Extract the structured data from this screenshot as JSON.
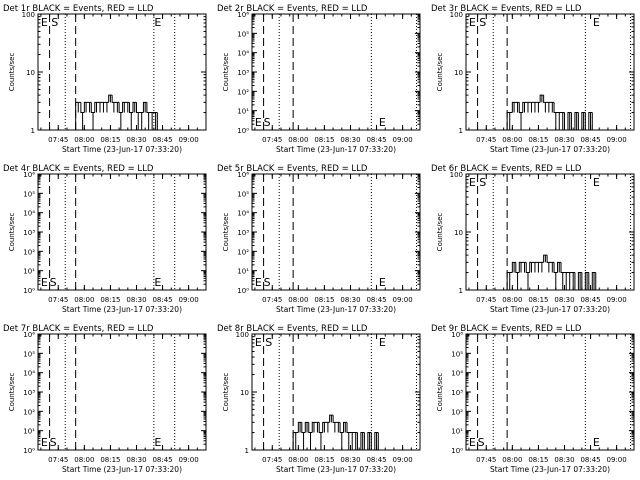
{
  "chart_data": [
    {
      "type": "line",
      "title": "Det 1r BLACK = Events, RED = LLD",
      "xlabel": "Start Time (23-Jun-17 07:33:20)",
      "ylabel": "Counts/sec",
      "yscale": "log",
      "ylim": [
        1,
        100
      ],
      "yticks": [
        "1",
        "10",
        "100"
      ],
      "xlim": [
        "07:33:20",
        "09:10:00"
      ],
      "xticks": [
        "07:45",
        "08:00",
        "08:15",
        "08:30",
        "08:45",
        "09:00"
      ],
      "markers": {
        "E": "07:37",
        "S": "07:43",
        "E2": "08:40"
      },
      "dashed_lines": [
        "07:40",
        "07:55"
      ],
      "dotted_lines": [
        "07:49",
        "08:40",
        "08:52"
      ],
      "series": [
        {
          "x": [
            "07:55",
            "07:58",
            "08:00",
            "08:02",
            "08:04",
            "08:06",
            "08:08",
            "08:10",
            "08:12",
            "08:14",
            "08:16",
            "08:18",
            "08:20",
            "08:22",
            "08:24",
            "08:26",
            "08:28",
            "08:30",
            "08:32",
            "08:34",
            "08:36",
            "08:38",
            "08:40"
          ],
          "values": [
            3,
            2,
            3,
            3,
            2,
            3,
            3,
            3,
            3,
            4,
            3,
            3,
            2,
            3,
            3,
            2,
            3,
            2,
            2,
            3,
            2,
            2,
            2
          ]
        }
      ]
    },
    {
      "type": "line",
      "title": "Det 2r BLACK = Events, RED = LLD",
      "xlabel": "Start Time (23-Jun-17 07:33:20)",
      "ylabel": "Counts/sec",
      "yscale": "log",
      "ylim": [
        1,
        1000000
      ],
      "yticks": [
        "10⁰",
        "10¹",
        "10²",
        "10³",
        "10⁴",
        "10⁵",
        "10⁶"
      ],
      "xlim": [
        "07:33:20",
        "09:10:00"
      ],
      "xticks": [
        "07:45",
        "08:00",
        "08:15",
        "08:30",
        "08:45",
        "09:00"
      ],
      "markers": {
        "E": "07:37",
        "S": "07:42",
        "E2": "08:46"
      },
      "dashed_lines": [
        "07:40",
        "07:57"
      ],
      "dotted_lines": [
        "07:49",
        "08:42",
        "09:08"
      ],
      "series": []
    },
    {
      "type": "line",
      "title": "Det 3r BLACK = Events, RED = LLD",
      "xlabel": "Start Time (23-Jun-17 07:33:20)",
      "ylabel": "Counts/sec",
      "yscale": "log",
      "ylim": [
        1,
        100
      ],
      "yticks": [
        "1",
        "10",
        "100"
      ],
      "xlim": [
        "07:33:20",
        "09:10:00"
      ],
      "xticks": [
        "07:45",
        "08:00",
        "08:15",
        "08:30",
        "08:45",
        "09:00"
      ],
      "markers": {
        "E": "07:37",
        "S": "07:43",
        "E2": "08:46"
      },
      "dashed_lines": [
        "07:40",
        "07:57"
      ],
      "dotted_lines": [
        "07:49",
        "08:42",
        "09:08"
      ],
      "series": [
        {
          "x": [
            "07:57",
            "08:00",
            "08:02",
            "08:04",
            "08:06",
            "08:08",
            "08:10",
            "08:12",
            "08:14",
            "08:16",
            "08:18",
            "08:20",
            "08:22",
            "08:24",
            "08:26",
            "08:28",
            "08:30",
            "08:32",
            "08:34",
            "08:36",
            "08:38",
            "08:40",
            "08:42",
            "08:44",
            "08:46"
          ],
          "values": [
            2,
            3,
            3,
            2,
            3,
            3,
            3,
            3,
            3,
            4,
            3,
            3,
            3,
            2,
            2,
            2,
            1,
            2,
            1,
            2,
            1,
            2,
            1,
            2,
            1
          ]
        }
      ]
    },
    {
      "type": "line",
      "title": "Det 4r BLACK = Events, RED = LLD",
      "xlabel": "Start Time (23-Jun-17 07:33:20)",
      "ylabel": "Counts/sec",
      "yscale": "log",
      "ylim": [
        1,
        1000000
      ],
      "yticks": [
        "10⁰",
        "10¹",
        "10²",
        "10³",
        "10⁴",
        "10⁵",
        "10⁶"
      ],
      "xlim": [
        "07:33:20",
        "09:10:00"
      ],
      "xticks": [
        "07:45",
        "08:00",
        "08:15",
        "08:30",
        "08:45",
        "09:00"
      ],
      "markers": {
        "E": "07:37",
        "S": "07:42",
        "E2": "08:40"
      },
      "dashed_lines": [
        "07:40",
        "07:55"
      ],
      "dotted_lines": [
        "07:49",
        "08:40",
        "08:52"
      ],
      "series": []
    },
    {
      "type": "line",
      "title": "Det 5r BLACK = Events, RED = LLD",
      "xlabel": "Start Time (23-Jun-17 07:33:20)",
      "ylabel": "Counts/sec",
      "yscale": "log",
      "ylim": [
        1,
        1000000
      ],
      "yticks": [
        "10⁰",
        "10¹",
        "10²",
        "10³",
        "10⁴",
        "10⁵",
        "10⁶"
      ],
      "xlim": [
        "07:33:20",
        "09:10:00"
      ],
      "xticks": [
        "07:45",
        "08:00",
        "08:15",
        "08:30",
        "08:45",
        "09:00"
      ],
      "markers": {
        "E": "07:37",
        "S": "07:42",
        "E2": "08:46"
      },
      "dashed_lines": [
        "07:40",
        "07:57"
      ],
      "dotted_lines": [
        "07:49",
        "08:42",
        "09:08"
      ],
      "series": []
    },
    {
      "type": "line",
      "title": "Det 6r BLACK = Events, RED = LLD",
      "xlabel": "Start Time (23-Jun-17 07:33:20)",
      "ylabel": "Counts/sec",
      "yscale": "log",
      "ylim": [
        1,
        100
      ],
      "yticks": [
        "1",
        "10",
        "100"
      ],
      "xlim": [
        "07:33:20",
        "09:10:00"
      ],
      "xticks": [
        "07:45",
        "08:00",
        "08:15",
        "08:30",
        "08:45",
        "09:00"
      ],
      "markers": {
        "E": "07:37",
        "S": "07:43",
        "E2": "08:46"
      },
      "dashed_lines": [
        "07:40",
        "07:57"
      ],
      "dotted_lines": [
        "07:49",
        "08:42",
        "09:08"
      ],
      "series": [
        {
          "x": [
            "07:57",
            "08:00",
            "08:02",
            "08:04",
            "08:06",
            "08:08",
            "08:10",
            "08:12",
            "08:14",
            "08:16",
            "08:18",
            "08:20",
            "08:22",
            "08:24",
            "08:26",
            "08:28",
            "08:30",
            "08:32",
            "08:34",
            "08:36",
            "08:38",
            "08:40",
            "08:42",
            "08:44",
            "08:46"
          ],
          "values": [
            2,
            3,
            2,
            3,
            3,
            2,
            3,
            3,
            3,
            3,
            4,
            3,
            3,
            2,
            3,
            2,
            2,
            2,
            2,
            1,
            2,
            1,
            2,
            1,
            2
          ]
        }
      ]
    },
    {
      "type": "line",
      "title": "Det 7r BLACK = Events, RED = LLD",
      "xlabel": "Start Time (23-Jun-17 07:33:20)",
      "ylabel": "Counts/sec",
      "yscale": "log",
      "ylim": [
        1,
        1000000
      ],
      "yticks": [
        "10⁰",
        "10¹",
        "10²",
        "10³",
        "10⁴",
        "10⁵",
        "10⁶"
      ],
      "xlim": [
        "07:33:20",
        "09:10:00"
      ],
      "xticks": [
        "07:45",
        "08:00",
        "08:15",
        "08:30",
        "08:45",
        "09:00"
      ],
      "markers": {
        "E": "07:37",
        "S": "07:42",
        "E2": "08:40"
      },
      "dashed_lines": [
        "07:40",
        "07:55"
      ],
      "dotted_lines": [
        "07:49",
        "08:40",
        "08:52"
      ],
      "series": []
    },
    {
      "type": "line",
      "title": "Det 8r BLACK = Events, RED = LLD",
      "xlabel": "Start Time (23-Jun-17 07:33:20)",
      "ylabel": "Counts/sec",
      "yscale": "log",
      "ylim": [
        1,
        100
      ],
      "yticks": [
        "1",
        "10",
        "100"
      ],
      "xlim": [
        "07:33:20",
        "09:10:00"
      ],
      "xticks": [
        "07:45",
        "08:00",
        "08:15",
        "08:30",
        "08:45",
        "09:00"
      ],
      "markers": {
        "E": "07:37",
        "S": "07:43",
        "E2": "08:46"
      },
      "dashed_lines": [
        "07:40",
        "07:57"
      ],
      "dotted_lines": [
        "07:49",
        "08:42",
        "09:08"
      ],
      "series": [
        {
          "x": [
            "07:57",
            "08:00",
            "08:02",
            "08:04",
            "08:06",
            "08:08",
            "08:10",
            "08:12",
            "08:14",
            "08:16",
            "08:18",
            "08:20",
            "08:22",
            "08:24",
            "08:26",
            "08:28",
            "08:30",
            "08:32",
            "08:34",
            "08:36",
            "08:38",
            "08:40",
            "08:42",
            "08:44",
            "08:46"
          ],
          "values": [
            2,
            3,
            2,
            3,
            2,
            3,
            3,
            2,
            3,
            3,
            4,
            3,
            3,
            2,
            3,
            2,
            2,
            2,
            1,
            2,
            1,
            2,
            1,
            2,
            1
          ]
        }
      ]
    },
    {
      "type": "line",
      "title": "Det 9r BLACK = Events, RED = LLD",
      "xlabel": "Start Time (23-Jun-17 07:33:20)",
      "ylabel": "Counts/sec",
      "yscale": "log",
      "ylim": [
        1,
        1000000
      ],
      "yticks": [
        "10⁰",
        "10¹",
        "10²",
        "10³",
        "10⁴",
        "10⁵",
        "10⁶"
      ],
      "xlim": [
        "07:33:20",
        "09:10:00"
      ],
      "xticks": [
        "07:45",
        "08:00",
        "08:15",
        "08:30",
        "08:45",
        "09:00"
      ],
      "markers": {
        "E": "07:37",
        "S": "07:42",
        "E2": "08:46"
      },
      "dashed_lines": [
        "07:40",
        "07:57"
      ],
      "dotted_lines": [
        "07:49",
        "08:42",
        "09:08"
      ],
      "series": []
    }
  ]
}
